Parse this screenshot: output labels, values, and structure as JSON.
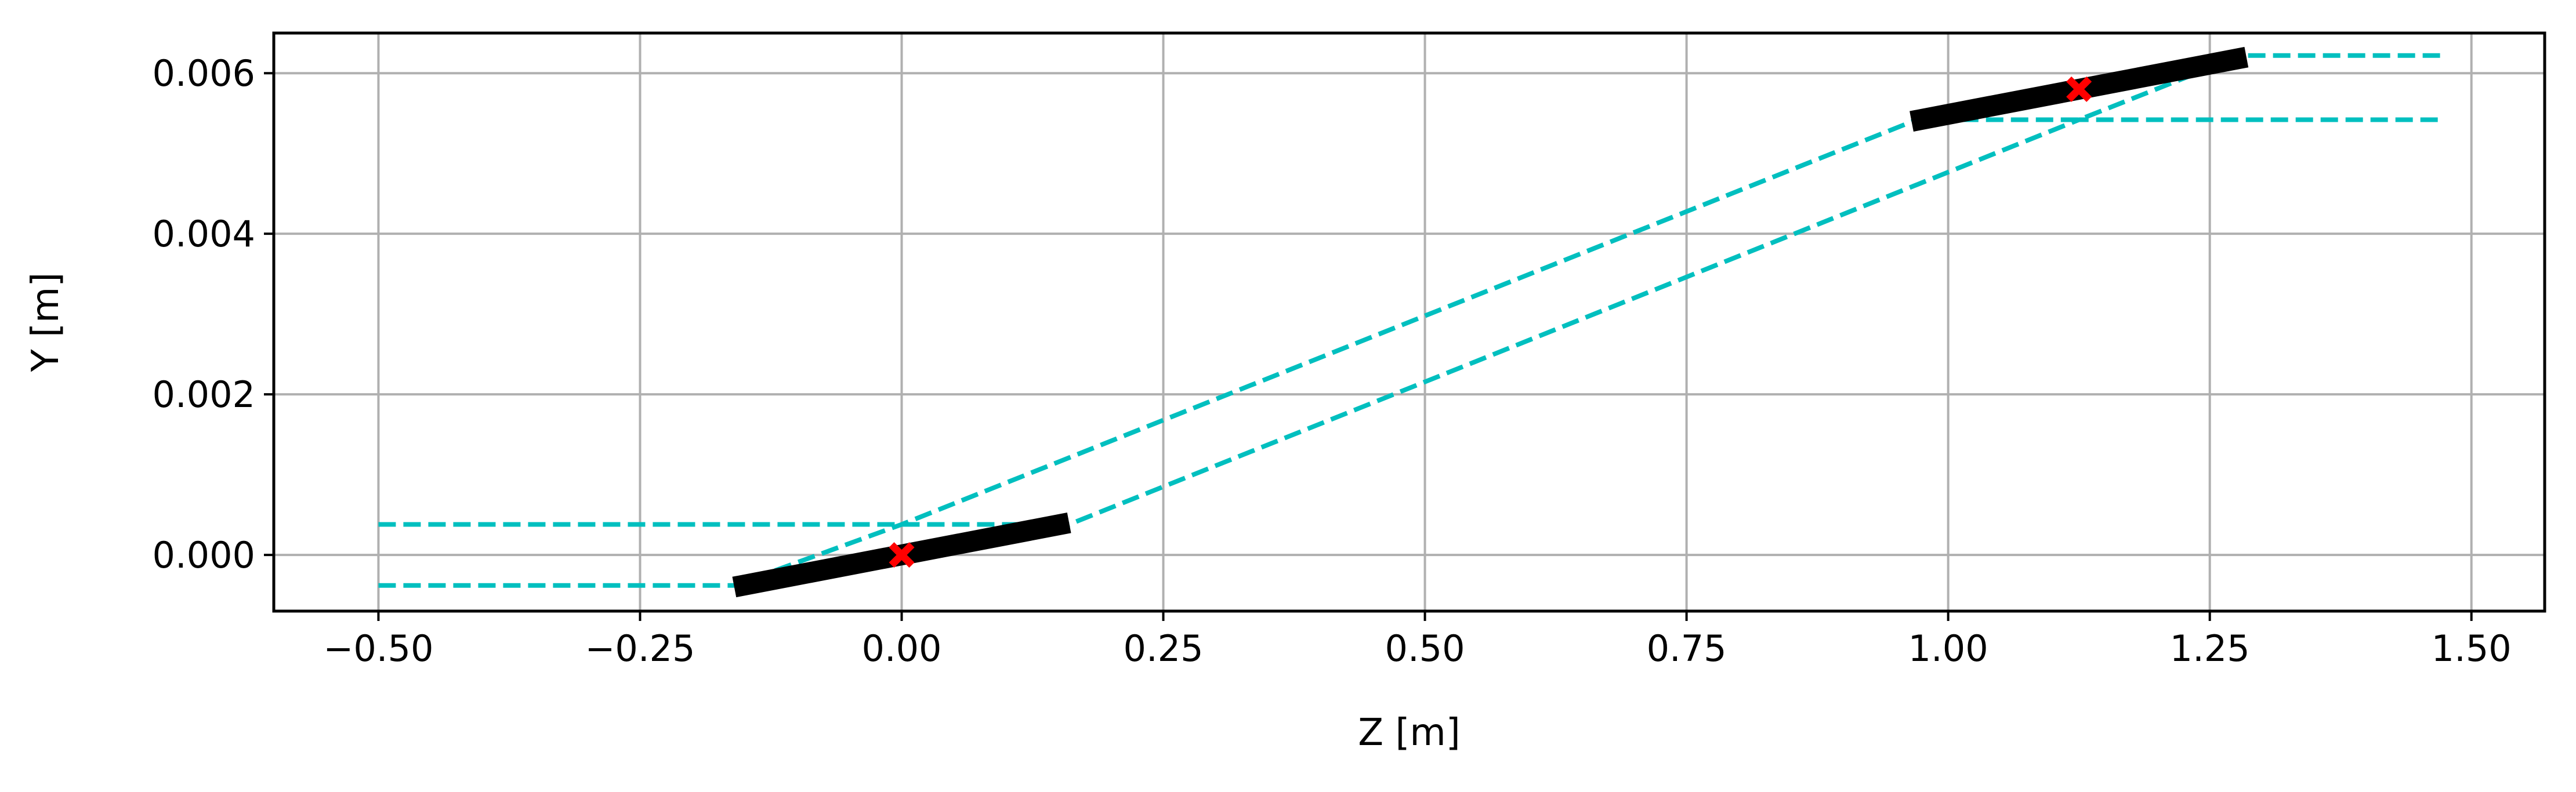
{
  "chart_data": {
    "type": "line",
    "title": "",
    "xlabel": "Z [m]",
    "ylabel": "Y [m]",
    "xlim": [
      -0.6,
      1.57
    ],
    "ylim": [
      -0.0007,
      0.0065
    ],
    "grid": true,
    "xticks": [
      {
        "value": -0.5,
        "label": "−0.50"
      },
      {
        "value": -0.25,
        "label": "−0.25"
      },
      {
        "value": 0.0,
        "label": "0.00"
      },
      {
        "value": 0.25,
        "label": "0.25"
      },
      {
        "value": 0.5,
        "label": "0.50"
      },
      {
        "value": 0.75,
        "label": "0.75"
      },
      {
        "value": 1.0,
        "label": "1.00"
      },
      {
        "value": 1.25,
        "label": "1.25"
      },
      {
        "value": 1.5,
        "label": "1.50"
      }
    ],
    "yticks": [
      {
        "value": 0.0,
        "label": "0.000"
      },
      {
        "value": 0.002,
        "label": "0.002"
      },
      {
        "value": 0.004,
        "label": "0.004"
      },
      {
        "value": 0.006,
        "label": "0.006"
      }
    ],
    "series": [
      {
        "style": "dashed",
        "color": "#00bfbf",
        "x": [
          -0.5,
          0.0,
          0.16,
          1.125,
          1.285,
          1.47
        ],
        "y": [
          0.00038,
          0.00038,
          0.00038,
          0.00542,
          0.00542,
          0.00542
        ]
      },
      {
        "style": "dashed",
        "color": "#00bfbf",
        "x": [
          -0.5,
          -0.16,
          0.0,
          0.97,
          1.125,
          1.28,
          1.47
        ],
        "y": [
          -0.00038,
          -0.00038,
          0.00038,
          0.00542,
          0.00542,
          0.00622,
          0.00622
        ]
      }
    ],
    "segments": [
      {
        "color": "#000000",
        "x": [
          -0.16,
          0.16
        ],
        "y": [
          -0.0004,
          0.0004
        ]
      },
      {
        "color": "#000000",
        "x": [
          0.965,
          1.285
        ],
        "y": [
          0.0054,
          0.0062
        ]
      }
    ],
    "markers": [
      {
        "color": "#ff0000",
        "shape": "x-filled",
        "x": 0.0,
        "y": 0.0
      },
      {
        "color": "#ff0000",
        "shape": "x-filled",
        "x": 1.125,
        "y": 0.0058
      }
    ]
  }
}
